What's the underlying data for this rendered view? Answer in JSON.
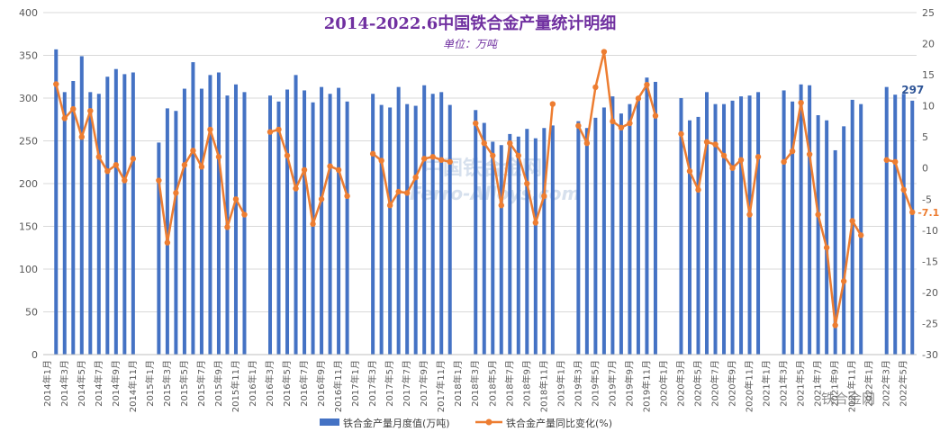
{
  "chart_data": {
    "type": "bar+line",
    "title": "2014-2022.6中国铁合金产量统计明细",
    "subtitle": "单位：万吨",
    "left_axis": {
      "min": 0,
      "max": 400,
      "step": 50
    },
    "right_axis": {
      "min": -30,
      "max": 25,
      "step": 5
    },
    "categories": [
      "2014年1月",
      "2014年2月",
      "2014年3月",
      "2014年4月",
      "2014年5月",
      "2014年6月",
      "2014年7月",
      "2014年8月",
      "2014年9月",
      "2014年10月",
      "2014年11月",
      "2014年12月",
      "2015年1月",
      "2015年2月",
      "2015年3月",
      "2015年4月",
      "2015年5月",
      "2015年6月",
      "2015年7月",
      "2015年8月",
      "2015年9月",
      "2015年10月",
      "2015年11月",
      "2015年12月",
      "2016年1月",
      "2016年2月",
      "2016年3月",
      "2016年4月",
      "2016年5月",
      "2016年6月",
      "2016年7月",
      "2016年8月",
      "2016年9月",
      "2016年10月",
      "2016年11月",
      "2016年12月",
      "2017年1月",
      "2017年2月",
      "2017年3月",
      "2017年4月",
      "2017年5月",
      "2017年6月",
      "2017年7月",
      "2017年8月",
      "2017年9月",
      "2017年10月",
      "2017年11月",
      "2017年12月",
      "2018年1月",
      "2018年2月",
      "2018年3月",
      "2018年4月",
      "2018年5月",
      "2018年6月",
      "2018年7月",
      "2018年8月",
      "2018年9月",
      "2018年10月",
      "2018年11月",
      "2018年12月",
      "2019年1月",
      "2019年2月",
      "2019年3月",
      "2019年4月",
      "2019年5月",
      "2019年6月",
      "2019年7月",
      "2019年8月",
      "2019年9月",
      "2019年10月",
      "2019年11月",
      "2019年12月",
      "2020年1月",
      "2020年2月",
      "2020年3月",
      "2020年4月",
      "2020年5月",
      "2020年6月",
      "2020年7月",
      "2020年8月",
      "2020年9月",
      "2020年10月",
      "2020年11月",
      "2020年12月",
      "2021年1月",
      "2021年2月",
      "2021年3月",
      "2021年4月",
      "2021年5月",
      "2021年6月",
      "2021年7月",
      "2021年8月",
      "2021年9月",
      "2021年10月",
      "2021年11月",
      "2021年12月",
      "2022年1月",
      "2022年2月",
      "2022年3月",
      "2022年4月",
      "2022年5月",
      "2022年6月"
    ],
    "x_tick_labels": [
      "2014年1月",
      "2014年3月",
      "2014年5月",
      "2014年7月",
      "2014年9月",
      "2014年11月",
      "2015年1月",
      "2015年3月",
      "2015年5月",
      "2015年7月",
      "2015年9月",
      "2015年11月",
      "2016年1月",
      "2016年3月",
      "2016年5月",
      "2016年7月",
      "2016年9月",
      "2016年11月",
      "2017年1月",
      "2017年3月",
      "2017年5月",
      "2017年7月",
      "2017年9月",
      "2017年11月",
      "2018年1月",
      "2018年3月",
      "2018年5月",
      "2018年7月",
      "2018年9月",
      "2018年11月",
      "2019年1月",
      "2019年3月",
      "2019年5月",
      "2019年7月",
      "2019年9月",
      "2019年11月",
      "2020年1月",
      "2020年3月",
      "2020年5月",
      "2020年7月",
      "2020年9月",
      "2020年11月",
      "2021年1月",
      "2021年3月",
      "2021年5月",
      "2021年7月",
      "2021年9月",
      "2021年11月",
      "2022年1月",
      "2022年3月",
      "2022年5月"
    ],
    "series": [
      {
        "name": "铁合金产量月度值(万吨)",
        "type": "bar",
        "axis": "left",
        "color": "#4472c4",
        "values": [
          null,
          357,
          307,
          320,
          349,
          307,
          305,
          325,
          334,
          328,
          330,
          null,
          null,
          248,
          288,
          285,
          311,
          342,
          311,
          327,
          330,
          303,
          316,
          307,
          null,
          null,
          303,
          296,
          310,
          327,
          309,
          295,
          313,
          305,
          312,
          296,
          null,
          null,
          305,
          292,
          289,
          313,
          293,
          291,
          315,
          305,
          307,
          292,
          null,
          null,
          286,
          271,
          249,
          245,
          258,
          255,
          264,
          253,
          265,
          268,
          null,
          null,
          273,
          265,
          277,
          289,
          302,
          282,
          293,
          299,
          324,
          319,
          null,
          null,
          300,
          274,
          278,
          307,
          293,
          293,
          297,
          302,
          303,
          307,
          null,
          null,
          309,
          296,
          316,
          315,
          280,
          274,
          239,
          267,
          298,
          293,
          null,
          null,
          313,
          304,
          305,
          297
        ],
        "last_label": "297"
      },
      {
        "name": "铁合金产量同比变化(%)",
        "type": "line",
        "axis": "right",
        "color": "#ed7d31",
        "values": [
          null,
          13.5,
          8,
          9.5,
          5,
          9.2,
          1.8,
          -0.5,
          0.5,
          -2,
          1.5,
          null,
          null,
          -2,
          -12,
          -4,
          0.5,
          2.8,
          0.2,
          6.2,
          1.8,
          -9.5,
          -5,
          -7.5,
          null,
          null,
          5.8,
          6.2,
          2,
          -3.3,
          -0.3,
          -9,
          -5,
          0.3,
          -0.3,
          -4.5,
          null,
          null,
          2.3,
          1.2,
          -6,
          -3.8,
          -4,
          -1.5,
          1.5,
          1.8,
          1.3,
          1,
          null,
          null,
          7.2,
          4,
          2,
          -6,
          4,
          2,
          -2.5,
          -8.8,
          -4.5,
          10.3,
          null,
          null,
          6.8,
          4,
          13,
          18.7,
          7.5,
          6.5,
          7.2,
          11.2,
          13.4,
          8.4,
          null,
          null,
          5.5,
          -0.5,
          -3.5,
          4.2,
          3.8,
          2,
          0,
          1.3,
          -7.5,
          1.8,
          null,
          null,
          1,
          2.7,
          10.5,
          2.2,
          -7.5,
          -12.8,
          -25.3,
          -18.2,
          -8.5,
          -10.8,
          null,
          null,
          1.3,
          1,
          -3.5,
          -7.1
        ],
        "last_label": "-7.1"
      }
    ],
    "legend": {
      "position": "bottom",
      "entries": [
        "铁合金产量月度值(万吨)",
        "铁合金产量同比变化(%)"
      ]
    },
    "watermark": {
      "cn": "中国铁合金网",
      "en": "Ferro-Alloys.com",
      "wechat": "铁合金网"
    },
    "left_ticks": [
      "0",
      "50",
      "100",
      "150",
      "200",
      "250",
      "300",
      "350",
      "400"
    ],
    "right_ticks": [
      "-30",
      "-25",
      "-20",
      "-15",
      "-10",
      "-5",
      "0",
      "5",
      "10",
      "15",
      "20",
      "25"
    ]
  }
}
